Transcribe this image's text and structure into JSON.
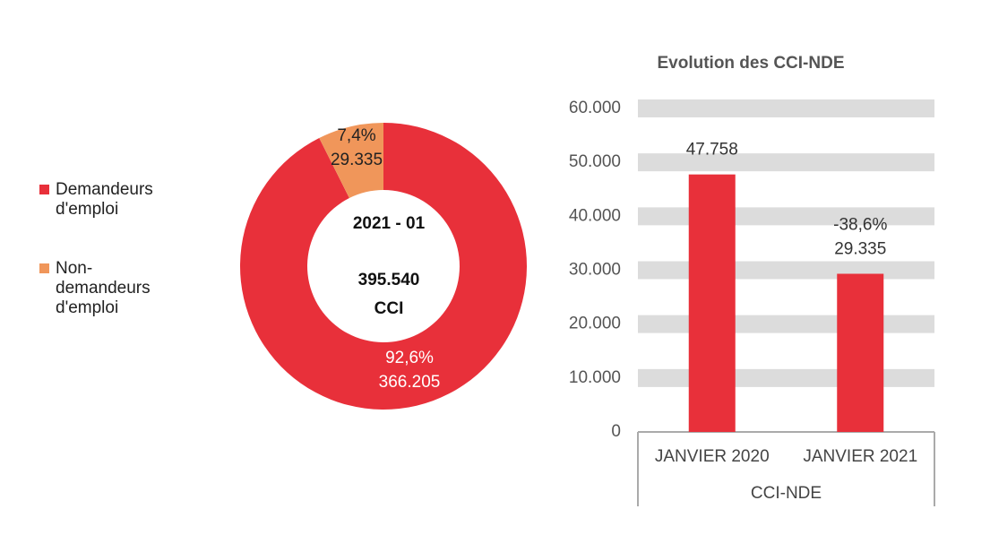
{
  "chart_data": [
    {
      "type": "donut",
      "categories": [
        "Demandeurs d'emploi",
        "Non-demandeurs d'emploi"
      ],
      "values": [
        92.6,
        7.4
      ],
      "value_labels": [
        "92,6%",
        "7,4%"
      ],
      "counts": [
        366205,
        29335
      ],
      "count_labels": [
        "366.205",
        "29.335"
      ],
      "colors": [
        "#e8303a",
        "#f0965a"
      ],
      "center_labels": [
        "2021 - 01",
        "395.540",
        "CCI"
      ],
      "legend": "left"
    },
    {
      "type": "bar",
      "title": "Evolution des CCI-NDE",
      "categories": [
        "JANVIER 2020",
        "JANVIER 2021"
      ],
      "group_label": "CCI-NDE",
      "values": [
        47758,
        29335
      ],
      "value_labels": [
        "47.758",
        "29.335"
      ],
      "change_label": "-38,6%",
      "color": "#e8303a",
      "ylim": [
        0,
        60000
      ],
      "yticks": [
        0,
        {
          "value": 10000,
          "label": "10.000"
        },
        {
          "value": 20000,
          "label": "20.000"
        },
        {
          "value": 30000,
          "label": "30.000"
        },
        {
          "value": 40000,
          "label": "40.000"
        },
        {
          "value": 50000,
          "label": "50.000"
        },
        {
          "value": 60000,
          "label": "60.000"
        }
      ],
      "grid": true
    }
  ]
}
